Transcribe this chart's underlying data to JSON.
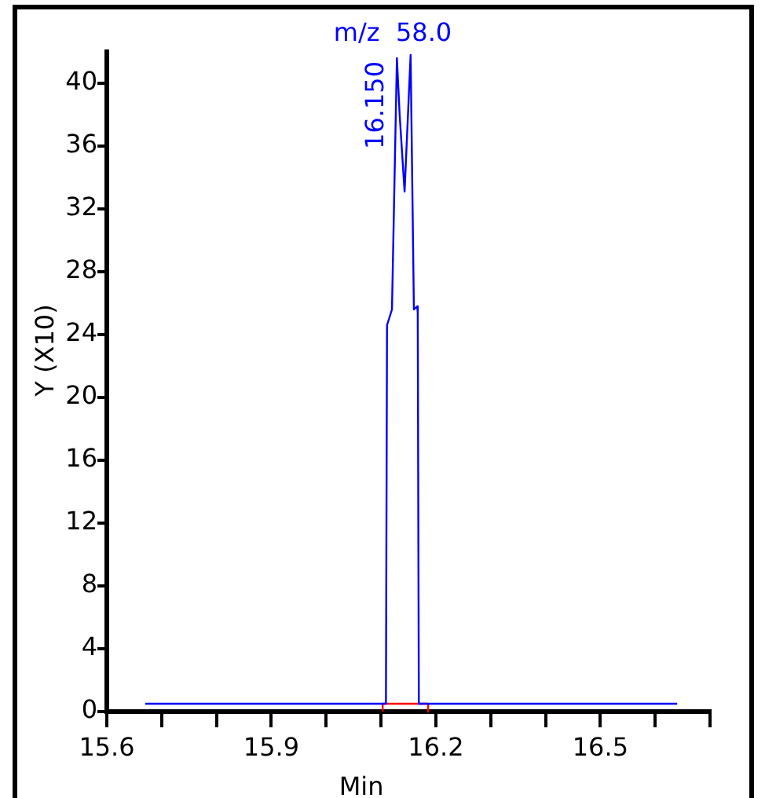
{
  "chart_data": {
    "type": "line",
    "title": "m/z  58.0",
    "xlabel": "Min",
    "ylabel": "Y (X10)",
    "series": [
      {
        "color": "#0000ff",
        "x": [
          15.67,
          16.109,
          16.111,
          16.12,
          16.129,
          16.134,
          16.143,
          16.154,
          16.16,
          16.166,
          16.167,
          16.169,
          16.18,
          16.64
        ],
        "values": [
          0.5,
          0.5,
          24.6,
          25.6,
          41.6,
          38,
          33.1,
          41.8,
          25.6,
          25.8,
          25.4,
          0.5,
          0.5,
          0.5
        ]
      },
      {
        "color": "#ff0000",
        "x": [
          16.103,
          16.103,
          16.186,
          16.186
        ],
        "values": [
          0,
          0.5,
          0.5,
          0
        ]
      }
    ],
    "xlim": [
      15.6,
      16.7
    ],
    "xticks": [
      15.6,
      {
        "value": 15.7,
        "label": null
      },
      {
        "value": 15.8,
        "label": null
      },
      15.9,
      {
        "value": 16.0,
        "label": null
      },
      {
        "value": 16.1,
        "label": null
      },
      16.2,
      {
        "value": 16.3,
        "label": null
      },
      {
        "value": 16.4,
        "label": null
      },
      16.5,
      {
        "value": 16.6,
        "label": null
      },
      {
        "value": 16.7,
        "label": null
      }
    ],
    "ylim": [
      0,
      42
    ],
    "yticks": [
      0,
      4,
      8,
      12,
      16,
      20,
      24,
      28,
      32,
      36,
      40
    ],
    "annotations": [
      {
        "text": "16.150",
        "x": 16.15,
        "y": 41.8
      }
    ],
    "grid": false,
    "legend": false,
    "marker": "none",
    "line_style": "solid"
  }
}
